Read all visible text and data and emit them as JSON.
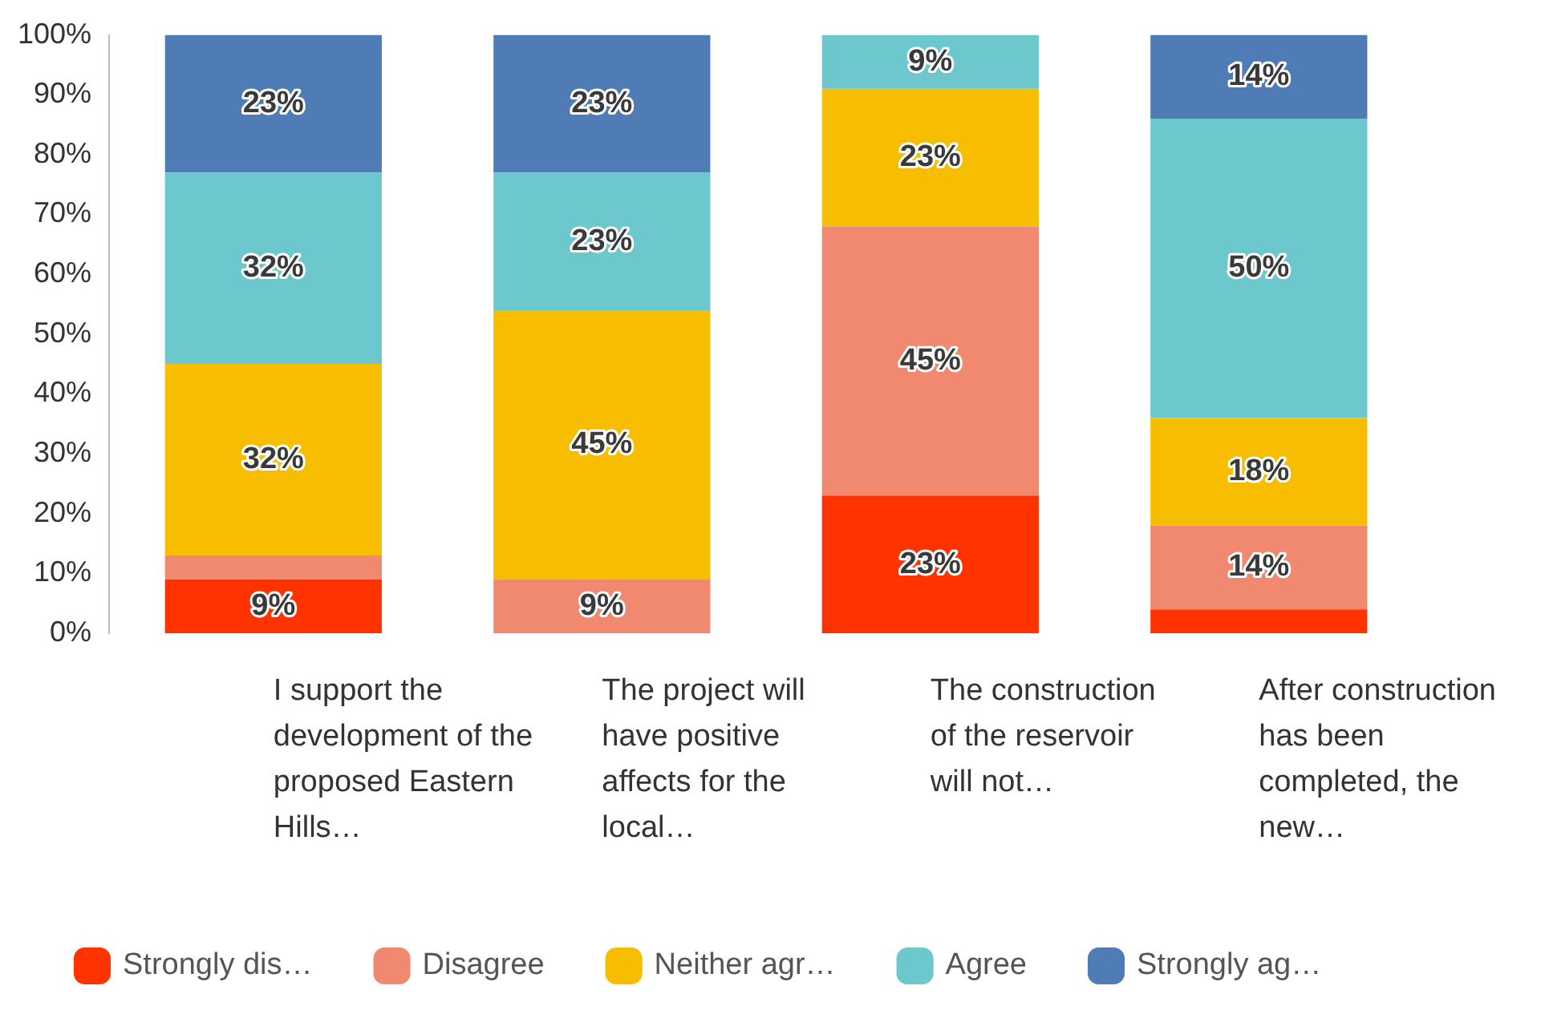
{
  "chart_data": {
    "type": "bar",
    "stacked": true,
    "categories": [
      "I support the development of the proposed Eastern Hills…",
      "The project will have positive affects for the local…",
      "The construction of the reservoir will not…",
      "After construction has been completed, the new…"
    ],
    "series": [
      {
        "name": "Strongly dis…",
        "color": "#ff3300",
        "values": [
          9,
          0,
          23,
          4
        ],
        "value_labels": [
          "9%",
          null,
          "23%",
          null
        ]
      },
      {
        "name": "Disagree",
        "color": "#f0896f",
        "values": [
          4,
          9,
          45,
          14
        ],
        "value_labels": [
          null,
          "9%",
          "45%",
          "14%"
        ]
      },
      {
        "name": "Neither agr…",
        "color": "#f7bd00",
        "values": [
          32,
          45,
          23,
          18
        ],
        "value_labels": [
          "32%",
          "45%",
          "23%",
          "18%"
        ]
      },
      {
        "name": "Agree",
        "color": "#6cc8cc",
        "values": [
          32,
          23,
          9,
          50
        ],
        "value_labels": [
          "32%",
          "23%",
          "9%",
          "50%"
        ]
      },
      {
        "name": "Strongly ag…",
        "color": "#507cb6",
        "values": [
          23,
          23,
          0,
          14
        ],
        "value_labels": [
          "23%",
          "23%",
          null,
          "14%"
        ]
      }
    ],
    "ylim": [
      0,
      100
    ],
    "yticks": [
      {
        "value": 0,
        "label": "0%"
      },
      {
        "value": 10,
        "label": "10%"
      },
      {
        "value": 20,
        "label": "20%"
      },
      {
        "value": 30,
        "label": "30%"
      },
      {
        "value": 40,
        "label": "40%"
      },
      {
        "value": 50,
        "label": "50%"
      },
      {
        "value": 60,
        "label": "60%"
      },
      {
        "value": 70,
        "label": "70%"
      },
      {
        "value": 80,
        "label": "80%"
      },
      {
        "value": 90,
        "label": "90%"
      },
      {
        "value": 100,
        "label": "100%"
      }
    ],
    "grid": false,
    "legend": "bottom"
  }
}
